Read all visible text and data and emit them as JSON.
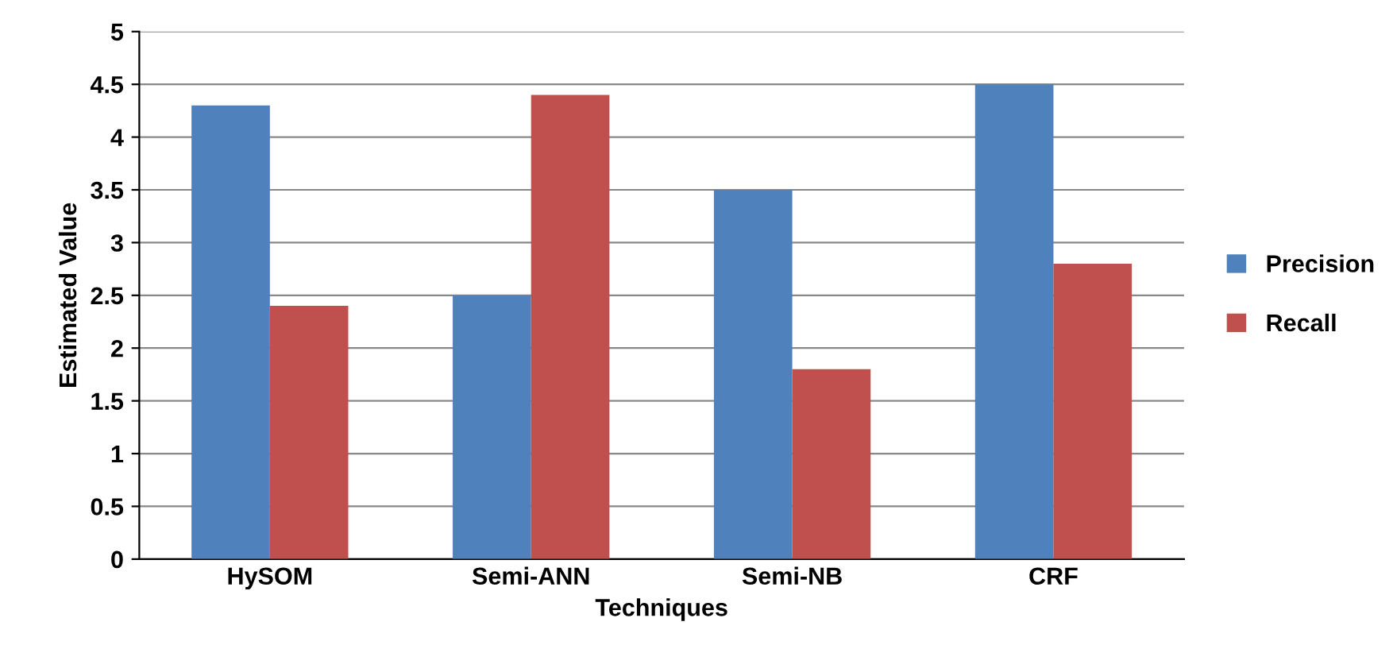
{
  "chart_data": {
    "type": "bar",
    "xlabel": "Techniques",
    "ylabel": "Estimated Value",
    "categories": [
      "HySOM",
      "Semi-ANN",
      "Semi-NB",
      "CRF"
    ],
    "series": [
      {
        "name": "Precision",
        "color": "#4f81bd",
        "values": [
          4.3,
          2.5,
          3.5,
          4.5
        ]
      },
      {
        "name": "Recall",
        "color": "#c0504d",
        "values": [
          2.4,
          4.4,
          1.8,
          2.8
        ]
      }
    ],
    "ylim": [
      0,
      5
    ],
    "yticks": [
      0,
      0.5,
      1,
      1.5,
      2,
      2.5,
      3,
      3.5,
      4,
      4.5,
      5
    ],
    "grid": "y",
    "legend": "right"
  }
}
